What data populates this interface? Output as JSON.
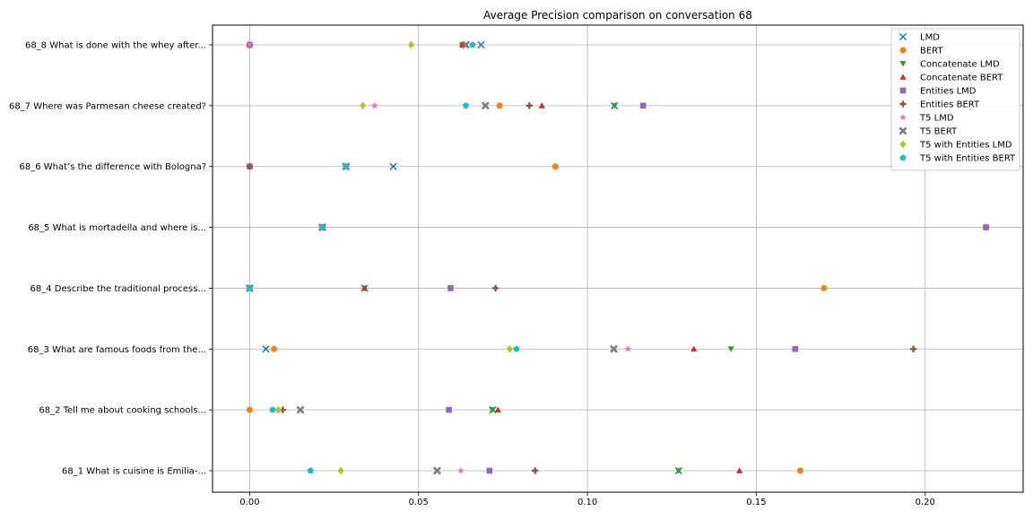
{
  "chart_data": {
    "type": "scatter",
    "title": "Average Precision comparison on conversation 68",
    "xlabel": "",
    "ylabel": "",
    "xlim": [
      -0.011,
      0.229
    ],
    "grid": true,
    "legend_position": "top-right",
    "x_ticks": [
      {
        "value": 0.0,
        "label": "0.00"
      },
      {
        "value": 0.05,
        "label": "0.05"
      },
      {
        "value": 0.1,
        "label": "0.10"
      },
      {
        "value": 0.15,
        "label": "0.15"
      },
      {
        "value": 0.2,
        "label": "0.20"
      }
    ],
    "categories": [
      "68_1 What is cuisine is Emilia-...",
      "68_2 Tell me about cooking schools...",
      "68_3 What are famous foods from the...",
      "68_4 Describe the traditional process...",
      "68_5 What is mortadella and where is...",
      "68_6 What’s the difference with Bologna?",
      "68_7 Where was Parmesan cheese created?",
      "68_8 What is done with the whey after..."
    ],
    "series": [
      {
        "name": "LMD",
        "color": "#1f77b4",
        "marker": "x",
        "values": [
          0.127,
          0.072,
          0.0048,
          0.034,
          0.0215,
          0.0425,
          0.108,
          0.0685
        ]
      },
      {
        "name": "BERT",
        "color": "#ff7f0e",
        "marker": "circle",
        "values": [
          0.163,
          0.0,
          0.0072,
          0.17,
          0.218,
          0.0905,
          0.074,
          0.063
        ]
      },
      {
        "name": "Concatenate LMD",
        "color": "#2ca02c",
        "marker": "triangle-down",
        "values": [
          0.127,
          0.0718,
          0.1425,
          0.034,
          0.0215,
          0.0285,
          0.108,
          0.063
        ]
      },
      {
        "name": "Concatenate BERT",
        "color": "#d62728",
        "marker": "triangle-up",
        "values": [
          0.145,
          0.0735,
          0.1315,
          0.034,
          0.0215,
          0.0285,
          0.0865,
          0.063
        ]
      },
      {
        "name": "Entities LMD",
        "color": "#9467bd",
        "marker": "square",
        "values": [
          0.071,
          0.059,
          0.1615,
          0.0595,
          0.218,
          0.0,
          0.1165,
          0.0
        ]
      },
      {
        "name": "Entities BERT",
        "color": "#8c564b",
        "marker": "plus",
        "values": [
          0.0845,
          0.0098,
          0.1965,
          0.0728,
          0.0215,
          0.0,
          0.0828,
          0.0
        ]
      },
      {
        "name": "T5 LMD",
        "color": "#e377c2",
        "marker": "star",
        "values": [
          0.0625,
          0.0085,
          0.112,
          0.0,
          0.0215,
          0.0285,
          0.037,
          0.0
        ]
      },
      {
        "name": "T5 BERT",
        "color": "#7f7f7f",
        "marker": "x-thick",
        "values": [
          0.0555,
          0.015,
          0.1078,
          0.0,
          0.0215,
          0.0285,
          0.0698,
          0.064
        ]
      },
      {
        "name": "T5 with Entities LMD",
        "color": "#bcbd22",
        "marker": "diamond",
        "values": [
          0.027,
          0.0085,
          0.077,
          0.0,
          0.0215,
          0.0285,
          0.0335,
          0.0478
        ]
      },
      {
        "name": "T5 with Entities BERT",
        "color": "#17becf",
        "marker": "pentagon",
        "values": [
          0.018,
          0.0068,
          0.079,
          0.0,
          0.0215,
          0.0285,
          0.064,
          0.066
        ]
      }
    ]
  }
}
